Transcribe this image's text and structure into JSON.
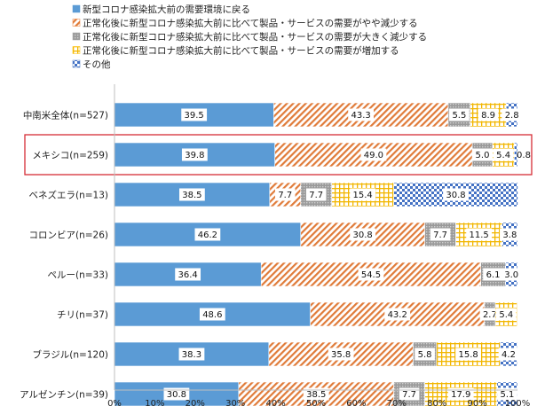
{
  "chart_data": {
    "type": "bar",
    "orientation": "horizontal",
    "stacked": true,
    "title": "",
    "xlabel": "",
    "ylabel": "",
    "xlim": [
      0,
      100
    ],
    "x_ticks": [
      "0%",
      "10%",
      "20%",
      "30%",
      "40%",
      "50%",
      "60%",
      "70%",
      "80%",
      "90%",
      "100%"
    ],
    "legend_position": "top",
    "grid": false,
    "highlighted_category": "メキシコ(n=259)",
    "categories": [
      "中南米全体(n=527)",
      "メキシコ(n=259)",
      "ベネズエラ(n=13)",
      "コロンビア(n=26)",
      "ペルー(n=33)",
      "チリ(n=37)",
      "ブラジル(n=120)",
      "アルゼンチン(n=39)"
    ],
    "series": [
      {
        "name": "新型コロナ感染拡大前の需要環境に戻る",
        "color": "#5b9bd5",
        "pattern": "solid",
        "values": [
          39.5,
          39.8,
          38.5,
          46.2,
          36.4,
          48.6,
          38.3,
          30.8
        ],
        "labels": [
          "39.5",
          "39.8",
          "38.5",
          "46.2",
          "36.4",
          "48.6",
          "38.3",
          "30.8"
        ]
      },
      {
        "name": "正常化後に新型コロナ感染拡大前に比べて製品・サービスの需要がやや減少する",
        "color": "#ed7d31",
        "pattern": "diagonal",
        "values": [
          43.3,
          49.0,
          7.7,
          30.8,
          54.5,
          43.2,
          35.8,
          38.5
        ],
        "labels": [
          "43.3",
          "49.0",
          "7.7",
          "30.8",
          "54.5",
          "43.2",
          "35.8",
          "38.5"
        ]
      },
      {
        "name": "正常化後に新型コロナ感染拡大前に比べて製品・サービスの需要が大きく減少する",
        "color": "#a5a5a5",
        "pattern": "dots",
        "values": [
          5.5,
          5.0,
          7.7,
          7.7,
          6.1,
          2.7,
          5.8,
          7.7
        ],
        "labels": [
          "5.5",
          "5.0",
          "7.7",
          "7.7",
          "6.1",
          "2.7",
          "5.8",
          "7.7"
        ]
      },
      {
        "name": "正常化後に新型コロナ感染拡大前に比べて製品・サービスの需要が増加する",
        "color": "#ffc000",
        "pattern": "grid",
        "values": [
          8.9,
          5.4,
          15.4,
          11.5,
          0,
          5.4,
          15.8,
          17.9
        ],
        "labels": [
          "8.9",
          "5.4",
          "15.4",
          "11.5",
          "",
          "5.4",
          "15.8",
          "17.9"
        ]
      },
      {
        "name": "その他",
        "color": "#4472c4",
        "pattern": "checker",
        "values": [
          2.8,
          0.8,
          30.8,
          3.8,
          3.0,
          0,
          4.2,
          5.1
        ],
        "labels": [
          "2.8",
          "0.8",
          "30.8",
          "3.8",
          "3.0",
          "",
          "4.2",
          "5.1"
        ]
      }
    ]
  }
}
